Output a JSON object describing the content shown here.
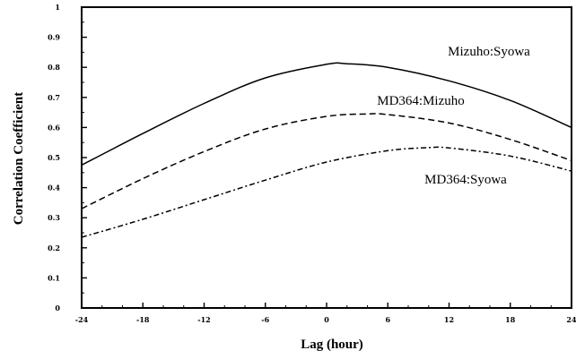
{
  "chart_data": {
    "type": "line",
    "xlabel": "Lag (hour)",
    "ylabel": "Correlation Coefficient",
    "xlim": [
      -24,
      24
    ],
    "ylim": [
      0,
      1
    ],
    "xticks": [
      -24,
      -18,
      -12,
      -6,
      0,
      6,
      12,
      18,
      24
    ],
    "yticks": [
      0,
      0.1,
      0.2,
      0.3,
      0.4,
      0.5,
      0.6,
      0.7,
      0.8,
      0.9,
      1
    ],
    "grid": false,
    "series": [
      {
        "name": "Mizuho:Syowa",
        "style": "solid",
        "x": [
          -24,
          -18,
          -12,
          -6,
          0,
          2,
          6,
          12,
          18,
          24
        ],
        "y": [
          0.475,
          0.58,
          0.68,
          0.765,
          0.81,
          0.812,
          0.8,
          0.755,
          0.69,
          0.6
        ]
      },
      {
        "name": "MD364:Mizuho",
        "style": "dashed",
        "x": [
          -24,
          -18,
          -12,
          -6,
          0,
          4,
          6,
          12,
          18,
          24
        ],
        "y": [
          0.33,
          0.43,
          0.52,
          0.595,
          0.637,
          0.645,
          0.643,
          0.615,
          0.56,
          0.49
        ]
      },
      {
        "name": "MD364:Syowa",
        "style": "dash-dot",
        "x": [
          -24,
          -18,
          -12,
          -6,
          0,
          6,
          10,
          12,
          18,
          24
        ],
        "y": [
          0.235,
          0.295,
          0.36,
          0.425,
          0.485,
          0.523,
          0.533,
          0.532,
          0.505,
          0.455
        ]
      }
    ]
  }
}
